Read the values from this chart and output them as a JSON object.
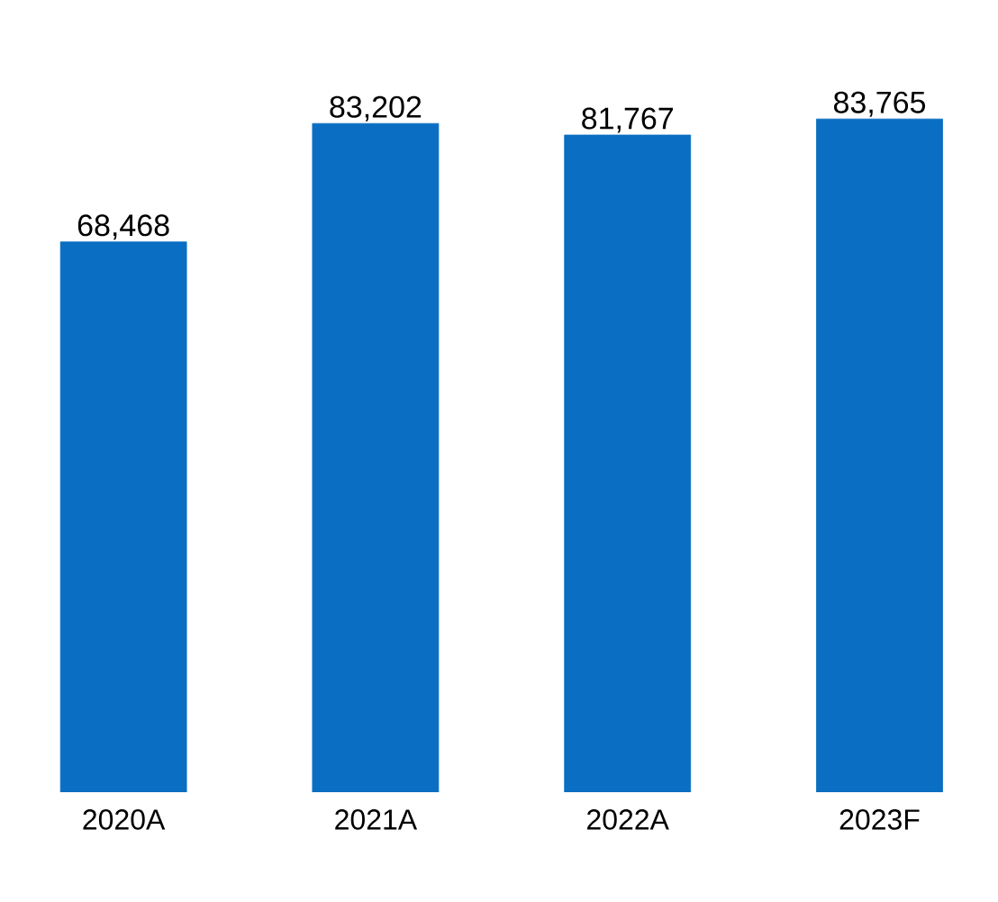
{
  "chart_data": {
    "type": "bar",
    "categories": [
      "2020A",
      "2021A",
      "2022A",
      "2023F"
    ],
    "values": [
      68468,
      83202,
      81767,
      83765
    ],
    "value_labels": [
      "68,468",
      "83,202",
      "81,767",
      "83,765"
    ],
    "color": "#0a6fc2"
  }
}
